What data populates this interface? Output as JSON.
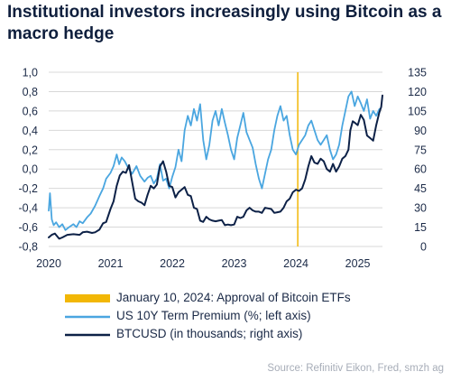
{
  "title": "Institutional investors increasingly using Bitcoin as a macro hedge",
  "source": "Source: Refinitiv Eikon, Fred, smzh ag",
  "legend": {
    "etf": "January 10, 2024: Approval of Bitcoin ETFs",
    "term_premium": "US 10Y Term Premium (%; left axis)",
    "btc": "BTCUSD (in thousands; right axis)"
  },
  "colors": {
    "term_premium": "#4aa6e0",
    "btc": "#0d2147",
    "etf": "#f2b705",
    "grid": "#d8d8d8"
  },
  "chart_data": {
    "type": "line",
    "x_tick_labels": [
      "2020",
      "2021",
      "2022",
      "2023",
      "2024",
      "2025"
    ],
    "x_ticks": [
      2020,
      2021,
      2022,
      2023,
      2024,
      2025
    ],
    "xlim": [
      2020,
      2025.4
    ],
    "y_left": {
      "ticks": [
        -0.8,
        -0.6,
        -0.4,
        -0.2,
        0.0,
        0.2,
        0.4,
        0.6,
        0.8,
        1.0
      ],
      "labels": [
        "-0,8",
        "-0,6",
        "-0,4",
        "-0,2",
        "0,0",
        "0,2",
        "0,4",
        "0,6",
        "0,8",
        "1,0"
      ],
      "ylim": [
        -0.8,
        1.0
      ]
    },
    "y_right": {
      "ticks": [
        0,
        15,
        30,
        45,
        60,
        75,
        90,
        105,
        120,
        135
      ],
      "labels": [
        "0",
        "15",
        "30",
        "45",
        "60",
        "75",
        "90",
        "105",
        "120",
        "135"
      ],
      "ylim": [
        0,
        135
      ]
    },
    "grid": "horizontal",
    "annotation": {
      "x": 2024.03
    },
    "series": [
      {
        "name": "US 10Y Term Premium (%; left axis)",
        "axis": "left",
        "points": [
          [
            2020.0,
            -0.43
          ],
          [
            2020.02,
            -0.25
          ],
          [
            2020.05,
            -0.52
          ],
          [
            2020.08,
            -0.58
          ],
          [
            2020.12,
            -0.55
          ],
          [
            2020.17,
            -0.6
          ],
          [
            2020.22,
            -0.57
          ],
          [
            2020.27,
            -0.63
          ],
          [
            2020.33,
            -0.6
          ],
          [
            2020.4,
            -0.57
          ],
          [
            2020.45,
            -0.6
          ],
          [
            2020.5,
            -0.54
          ],
          [
            2020.55,
            -0.56
          ],
          [
            2020.62,
            -0.5
          ],
          [
            2020.68,
            -0.46
          ],
          [
            2020.75,
            -0.38
          ],
          [
            2020.82,
            -0.28
          ],
          [
            2020.88,
            -0.2
          ],
          [
            2020.93,
            -0.1
          ],
          [
            2021.0,
            -0.04
          ],
          [
            2021.05,
            0.03
          ],
          [
            2021.1,
            0.15
          ],
          [
            2021.14,
            0.05
          ],
          [
            2021.18,
            0.12
          ],
          [
            2021.23,
            0.08
          ],
          [
            2021.28,
            0.02
          ],
          [
            2021.35,
            -0.05
          ],
          [
            2021.42,
            0.03
          ],
          [
            2021.48,
            -0.07
          ],
          [
            2021.55,
            -0.13
          ],
          [
            2021.6,
            -0.09
          ],
          [
            2021.65,
            -0.07
          ],
          [
            2021.7,
            -0.15
          ],
          [
            2021.75,
            -0.1
          ],
          [
            2021.8,
            0.05
          ],
          [
            2021.85,
            -0.12
          ],
          [
            2021.9,
            -0.1
          ],
          [
            2021.95,
            -0.2
          ],
          [
            2022.0,
            -0.08
          ],
          [
            2022.05,
            0.02
          ],
          [
            2022.1,
            0.2
          ],
          [
            2022.15,
            0.08
          ],
          [
            2022.2,
            0.4
          ],
          [
            2022.25,
            0.55
          ],
          [
            2022.3,
            0.45
          ],
          [
            2022.35,
            0.62
          ],
          [
            2022.4,
            0.5
          ],
          [
            2022.45,
            0.67
          ],
          [
            2022.5,
            0.3
          ],
          [
            2022.55,
            0.1
          ],
          [
            2022.6,
            0.25
          ],
          [
            2022.65,
            0.5
          ],
          [
            2022.7,
            0.6
          ],
          [
            2022.75,
            0.45
          ],
          [
            2022.8,
            0.62
          ],
          [
            2022.85,
            0.48
          ],
          [
            2022.9,
            0.35
          ],
          [
            2022.95,
            0.2
          ],
          [
            2023.0,
            0.1
          ],
          [
            2023.05,
            0.32
          ],
          [
            2023.1,
            0.45
          ],
          [
            2023.15,
            0.58
          ],
          [
            2023.2,
            0.38
          ],
          [
            2023.25,
            0.3
          ],
          [
            2023.3,
            0.22
          ],
          [
            2023.35,
            0.05
          ],
          [
            2023.4,
            -0.1
          ],
          [
            2023.45,
            -0.2
          ],
          [
            2023.5,
            -0.05
          ],
          [
            2023.55,
            0.1
          ],
          [
            2023.6,
            0.2
          ],
          [
            2023.65,
            0.4
          ],
          [
            2023.7,
            0.55
          ],
          [
            2023.75,
            0.65
          ],
          [
            2023.8,
            0.5
          ],
          [
            2023.85,
            0.55
          ],
          [
            2023.9,
            0.35
          ],
          [
            2023.95,
            0.2
          ],
          [
            2024.0,
            0.15
          ],
          [
            2024.05,
            0.25
          ],
          [
            2024.1,
            0.3
          ],
          [
            2024.15,
            0.35
          ],
          [
            2024.2,
            0.45
          ],
          [
            2024.25,
            0.5
          ],
          [
            2024.3,
            0.4
          ],
          [
            2024.35,
            0.3
          ],
          [
            2024.4,
            0.25
          ],
          [
            2024.45,
            0.3
          ],
          [
            2024.5,
            0.35
          ],
          [
            2024.55,
            0.2
          ],
          [
            2024.6,
            0.1
          ],
          [
            2024.65,
            0.15
          ],
          [
            2024.7,
            0.25
          ],
          [
            2024.75,
            0.45
          ],
          [
            2024.8,
            0.6
          ],
          [
            2024.85,
            0.75
          ],
          [
            2024.9,
            0.8
          ],
          [
            2024.95,
            0.65
          ],
          [
            2025.0,
            0.75
          ],
          [
            2025.05,
            0.68
          ],
          [
            2025.1,
            0.6
          ],
          [
            2025.15,
            0.72
          ],
          [
            2025.2,
            0.52
          ],
          [
            2025.25,
            0.6
          ],
          [
            2025.3,
            0.55
          ],
          [
            2025.35,
            0.62
          ]
        ]
      },
      {
        "name": "BTCUSD (in thousands; right axis)",
        "axis": "right",
        "points": [
          [
            2020.0,
            7
          ],
          [
            2020.05,
            9
          ],
          [
            2020.1,
            10
          ],
          [
            2020.17,
            6
          ],
          [
            2020.22,
            7
          ],
          [
            2020.3,
            9
          ],
          [
            2020.4,
            9.5
          ],
          [
            2020.5,
            9
          ],
          [
            2020.55,
            11
          ],
          [
            2020.62,
            11.5
          ],
          [
            2020.7,
            10.5
          ],
          [
            2020.75,
            11
          ],
          [
            2020.82,
            13
          ],
          [
            2020.88,
            18
          ],
          [
            2020.93,
            19
          ],
          [
            2021.0,
            29
          ],
          [
            2021.05,
            35
          ],
          [
            2021.1,
            47
          ],
          [
            2021.15,
            55
          ],
          [
            2021.2,
            58
          ],
          [
            2021.25,
            57
          ],
          [
            2021.3,
            63
          ],
          [
            2021.35,
            50
          ],
          [
            2021.4,
            37
          ],
          [
            2021.45,
            35
          ],
          [
            2021.5,
            34
          ],
          [
            2021.55,
            32
          ],
          [
            2021.6,
            40
          ],
          [
            2021.65,
            47
          ],
          [
            2021.7,
            45
          ],
          [
            2021.75,
            48
          ],
          [
            2021.8,
            62
          ],
          [
            2021.85,
            66
          ],
          [
            2021.9,
            58
          ],
          [
            2021.95,
            47
          ],
          [
            2022.0,
            46
          ],
          [
            2022.05,
            38
          ],
          [
            2022.1,
            42
          ],
          [
            2022.15,
            44
          ],
          [
            2022.2,
            46
          ],
          [
            2022.25,
            40
          ],
          [
            2022.3,
            39
          ],
          [
            2022.35,
            30
          ],
          [
            2022.4,
            29
          ],
          [
            2022.45,
            20
          ],
          [
            2022.5,
            19
          ],
          [
            2022.55,
            23
          ],
          [
            2022.6,
            21
          ],
          [
            2022.65,
            20
          ],
          [
            2022.7,
            19.5
          ],
          [
            2022.75,
            20
          ],
          [
            2022.8,
            20.5
          ],
          [
            2022.85,
            16.5
          ],
          [
            2022.9,
            17
          ],
          [
            2022.95,
            16.5
          ],
          [
            2023.0,
            17
          ],
          [
            2023.05,
            23
          ],
          [
            2023.1,
            22
          ],
          [
            2023.15,
            23
          ],
          [
            2023.2,
            28
          ],
          [
            2023.25,
            30
          ],
          [
            2023.3,
            28
          ],
          [
            2023.35,
            27
          ],
          [
            2023.4,
            27
          ],
          [
            2023.45,
            26
          ],
          [
            2023.5,
            30
          ],
          [
            2023.55,
            29.5
          ],
          [
            2023.6,
            29
          ],
          [
            2023.65,
            26
          ],
          [
            2023.7,
            26.5
          ],
          [
            2023.75,
            27
          ],
          [
            2023.8,
            30
          ],
          [
            2023.85,
            35
          ],
          [
            2023.9,
            37
          ],
          [
            2023.95,
            42
          ],
          [
            2024.0,
            44
          ],
          [
            2024.05,
            43
          ],
          [
            2024.1,
            45
          ],
          [
            2024.15,
            52
          ],
          [
            2024.2,
            62
          ],
          [
            2024.25,
            70
          ],
          [
            2024.3,
            65
          ],
          [
            2024.35,
            64
          ],
          [
            2024.4,
            68
          ],
          [
            2024.45,
            66
          ],
          [
            2024.5,
            60
          ],
          [
            2024.55,
            58
          ],
          [
            2024.6,
            64
          ],
          [
            2024.65,
            58
          ],
          [
            2024.7,
            62
          ],
          [
            2024.75,
            68
          ],
          [
            2024.8,
            70
          ],
          [
            2024.85,
            75
          ],
          [
            2024.88,
            90
          ],
          [
            2024.92,
            97
          ],
          [
            2024.95,
            96
          ],
          [
            2025.0,
            94
          ],
          [
            2025.05,
            102
          ],
          [
            2025.1,
            98
          ],
          [
            2025.15,
            86
          ],
          [
            2025.2,
            84
          ],
          [
            2025.25,
            82
          ],
          [
            2025.3,
            94
          ],
          [
            2025.35,
            104
          ],
          [
            2025.38,
            108
          ],
          [
            2025.4,
            117
          ]
        ]
      }
    ]
  }
}
